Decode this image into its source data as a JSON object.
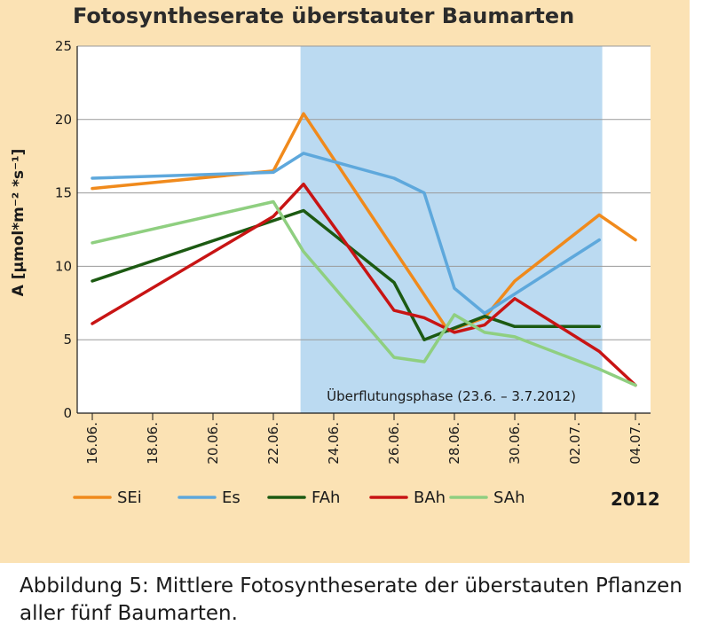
{
  "chart_data": {
    "type": "line",
    "title": "Fotosyntheserate überstauter Baumarten",
    "ylabel": "A [µmol*m⁻² *s⁻¹]",
    "year_label": "2012",
    "ylim": [
      0,
      25
    ],
    "yticks": [
      "0",
      "5",
      "10",
      "15",
      "20",
      "25"
    ],
    "xticks": [
      "16.06.",
      "18.06.",
      "20.06.",
      "22.06.",
      "24.06.",
      "26.06.",
      "28.06.",
      "30.06.",
      "02.07.",
      "04.07."
    ],
    "xtick_days": [
      0,
      2,
      4,
      6,
      8,
      10,
      12,
      14,
      16,
      18
    ],
    "xlim_days": [
      -0.5,
      18.5
    ],
    "shaded_region": {
      "start_day": 6.9,
      "end_day": 16.9,
      "label": "Überflutungsphase (23.6. – 3.7.2012)",
      "color": "#bbdaf1"
    },
    "grid": "horizontal",
    "series": [
      {
        "name": "SEi",
        "color": "#f08a1c",
        "points": [
          [
            0,
            15.3
          ],
          [
            6,
            16.5
          ],
          [
            7,
            20.4
          ],
          [
            11.8,
            5.6
          ],
          [
            13,
            6.5
          ],
          [
            14,
            9.0
          ],
          [
            16.8,
            13.5
          ],
          [
            18,
            11.8
          ]
        ]
      },
      {
        "name": "Es",
        "color": "#5ea8dc",
        "points": [
          [
            0,
            16.0
          ],
          [
            6,
            16.4
          ],
          [
            7,
            17.7
          ],
          [
            10,
            16.0
          ],
          [
            11,
            15.0
          ],
          [
            12,
            8.5
          ],
          [
            13,
            6.8
          ],
          [
            16.8,
            11.8
          ]
        ]
      },
      {
        "name": "FAh",
        "color": "#1c5a12",
        "points": [
          [
            0,
            9.0
          ],
          [
            7,
            13.8
          ],
          [
            10,
            8.9
          ],
          [
            11,
            5.0
          ],
          [
            13,
            6.6
          ],
          [
            14,
            5.9
          ],
          [
            16.8,
            5.9
          ]
        ]
      },
      {
        "name": "BAh",
        "color": "#c81414",
        "points": [
          [
            0,
            6.1
          ],
          [
            6,
            13.4
          ],
          [
            7,
            15.6
          ],
          [
            10,
            7.0
          ],
          [
            11,
            6.5
          ],
          [
            12,
            5.5
          ],
          [
            13,
            6.0
          ],
          [
            14,
            7.8
          ],
          [
            16.8,
            4.2
          ],
          [
            18,
            1.9
          ]
        ]
      },
      {
        "name": "SAh",
        "color": "#8fcf80",
        "points": [
          [
            0,
            11.6
          ],
          [
            6,
            14.4
          ],
          [
            7,
            11.0
          ],
          [
            10,
            3.8
          ],
          [
            11,
            3.5
          ],
          [
            12,
            6.7
          ],
          [
            13,
            5.5
          ],
          [
            14,
            5.2
          ],
          [
            16.8,
            3.0
          ],
          [
            18,
            1.9
          ]
        ]
      }
    ]
  },
  "caption": {
    "line1": "Abbildung 5: Mittlere Fotosyntheserate der überstauten Pflanzen",
    "line2": "aller fünf Baumarten."
  }
}
